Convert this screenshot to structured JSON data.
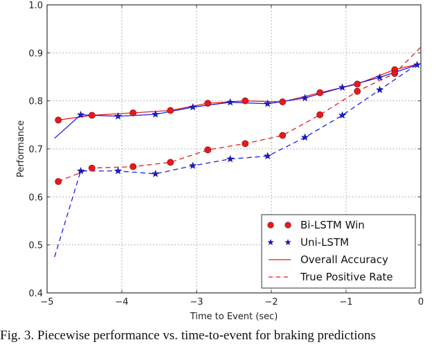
{
  "chart_data": {
    "type": "line",
    "title": "",
    "xlabel": "Time to Event (sec)",
    "ylabel": "Performance",
    "xlim": [
      -5,
      0
    ],
    "ylim": [
      0.4,
      1.0
    ],
    "xticks": [
      "-5",
      "-4",
      "-3",
      "-2",
      "-1",
      "0"
    ],
    "yticks": [
      "0.4",
      "0.5",
      "0.6",
      "0.7",
      "0.8",
      "0.9",
      "1.0"
    ],
    "grid": true,
    "legend_position": "lower right",
    "legend": [
      {
        "label": "Bi-LSTM Win",
        "style": "red-circle-marker"
      },
      {
        "label": "Uni-LSTM",
        "style": "blue-star-marker"
      },
      {
        "label": "Overall Accuracy",
        "style": "solid-line"
      },
      {
        "label": "True Positive Rate",
        "style": "dashed-line"
      }
    ],
    "series": [
      {
        "name": "Bi-LSTM Win - Overall Accuracy",
        "color": "#e8191c",
        "line": "solid",
        "marker": "circle",
        "x": [
          -4.85,
          -4.4,
          -3.85,
          -3.35,
          -2.85,
          -2.35,
          -1.85,
          -1.35,
          -0.85,
          -0.35,
          0.0
        ],
        "values": [
          0.76,
          0.77,
          0.775,
          0.78,
          0.795,
          0.8,
          0.798,
          0.817,
          0.835,
          0.865,
          0.878
        ]
      },
      {
        "name": "Bi-LSTM Win - True Positive Rate",
        "color": "#e8191c",
        "line": "dashed",
        "marker": "circle",
        "x": [
          -4.85,
          -4.4,
          -3.85,
          -3.35,
          -2.85,
          -2.35,
          -1.85,
          -1.35,
          -0.85,
          -0.35,
          0.0
        ],
        "values": [
          0.632,
          0.66,
          0.663,
          0.672,
          0.698,
          0.711,
          0.728,
          0.771,
          0.82,
          0.857,
          0.912
        ]
      },
      {
        "name": "Uni-LSTM - Overall Accuracy",
        "color": "#1a1ae6",
        "line": "solid",
        "marker": "star",
        "x": [
          -4.9,
          -4.55,
          -4.05,
          -3.55,
          -3.05,
          -2.55,
          -2.05,
          -1.55,
          -1.05,
          -0.55,
          -0.05
        ],
        "values": [
          0.722,
          0.771,
          0.768,
          0.772,
          0.787,
          0.797,
          0.794,
          0.806,
          0.828,
          0.849,
          0.875
        ]
      },
      {
        "name": "Uni-LSTM - True Positive Rate",
        "color": "#1a1ae6",
        "line": "dashed",
        "marker": "star",
        "x": [
          -4.9,
          -4.55,
          -4.05,
          -3.55,
          -3.05,
          -2.55,
          -2.05,
          -1.55,
          -1.05,
          -0.55,
          -0.05
        ],
        "values": [
          0.475,
          0.654,
          0.654,
          0.648,
          0.665,
          0.679,
          0.685,
          0.724,
          0.77,
          0.823,
          0.876
        ]
      }
    ]
  },
  "caption": "Fig. 3.   Piecewise performance vs. time-to-event for braking predictions"
}
